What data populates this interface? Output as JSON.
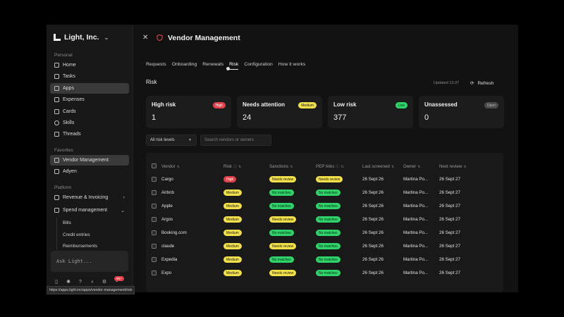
{
  "sidebar": {
    "org": "Light, Inc.",
    "sections": {
      "personal": "Personal",
      "favorites": "Favorites",
      "platform": "Platform"
    },
    "items": [
      {
        "label": "Home",
        "icon": "home-icon"
      },
      {
        "label": "Tasks",
        "icon": "tasks-icon"
      },
      {
        "label": "Apps",
        "icon": "apps-icon",
        "active": true
      },
      {
        "label": "Expenses",
        "icon": "expenses-icon"
      },
      {
        "label": "Cards",
        "icon": "cards-icon"
      },
      {
        "label": "Skills",
        "icon": "skills-icon"
      },
      {
        "label": "Threads",
        "icon": "threads-icon"
      }
    ],
    "favorites": [
      {
        "label": "Vendor Management",
        "icon": "vendor-icon",
        "active": true
      },
      {
        "label": "Adyen",
        "icon": "adyen-icon"
      }
    ],
    "platform": [
      {
        "label": "Revenue & Invoicing",
        "icon": "revenue-icon"
      },
      {
        "label": "Spend management",
        "icon": "spend-icon"
      }
    ],
    "spend_sub": [
      "Bills",
      "Credit entries",
      "Reimbursements"
    ],
    "ask_placeholder": "Ask Light...",
    "notif_count": "99+"
  },
  "header": {
    "title": "Vendor Management",
    "tabs": [
      "Requests",
      "Onboarding",
      "Renewals",
      "Risk",
      "Configuration",
      "How it works"
    ],
    "active_tab": "Risk"
  },
  "risk": {
    "title": "Risk",
    "updated": "Updated 13:37",
    "refresh": "Refresh",
    "cards": [
      {
        "label": "High risk",
        "badge": "High",
        "count": "1",
        "badge_bg": "#e0424b",
        "badge_fg": "#ffffff"
      },
      {
        "label": "Needs attention",
        "badge": "Medium",
        "count": "24",
        "badge_bg": "#f2e04a",
        "badge_fg": "#1a1a1a"
      },
      {
        "label": "Low risk",
        "badge": "Low",
        "count": "377",
        "badge_bg": "#2fd36a",
        "badge_fg": "#0d2a16"
      },
      {
        "label": "Unassessed",
        "badge": "Open",
        "count": "0",
        "badge_bg": "#4a4a4a",
        "badge_fg": "#b8b8b8"
      }
    ],
    "filter": "All risk levels",
    "search_placeholder": "Search vendors or owners"
  },
  "table": {
    "columns": [
      "Vendor",
      "Risk",
      "Sanctions",
      "PEP links",
      "Last screened",
      "Owner",
      "Next review"
    ],
    "rows": [
      {
        "vendor": "Cargo",
        "risk": "High",
        "sanctions": "Needs review",
        "pep": "Needs review",
        "last": "26 Sept 26",
        "owner": "Martina Po...",
        "next": "26 Sept 27"
      },
      {
        "vendor": "Airbnb",
        "risk": "Medium",
        "sanctions": "No matches",
        "pep": "No matches",
        "last": "26 Sept 26",
        "owner": "Martina Po...",
        "next": "26 Sept 27"
      },
      {
        "vendor": "Apple",
        "risk": "Medium",
        "sanctions": "No matches",
        "pep": "No matches",
        "last": "26 Sept 26",
        "owner": "Martina Po...",
        "next": "26 Sept 27"
      },
      {
        "vendor": "Argos",
        "risk": "Medium",
        "sanctions": "Needs review",
        "pep": "No matches",
        "last": "26 Sept 26",
        "owner": "Martina Po...",
        "next": "26 Sept 27"
      },
      {
        "vendor": "Booking.com",
        "risk": "Medium",
        "sanctions": "No matches",
        "pep": "No matches",
        "last": "26 Sept 26",
        "owner": "Martina Po...",
        "next": "26 Sept 27"
      },
      {
        "vendor": "claude",
        "risk": "Medium",
        "sanctions": "Needs review",
        "pep": "No matches",
        "last": "26 Sept 26",
        "owner": "Martina Po...",
        "next": "26 Sept 27"
      },
      {
        "vendor": "Expedia",
        "risk": "Medium",
        "sanctions": "No matches",
        "pep": "No matches",
        "last": "26 Sept 26",
        "owner": "Martina Po...",
        "next": "26 Sept 27"
      },
      {
        "vendor": "Expo",
        "risk": "Medium",
        "sanctions": "Needs review",
        "pep": "No matches",
        "last": "26 Sept 26",
        "owner": "Martina Po...",
        "next": "26 Sept 27"
      }
    ]
  },
  "pill_colors": {
    "High": {
      "bg": "#e0424b",
      "fg": "#ffffff"
    },
    "Medium": {
      "bg": "#f2e04a",
      "fg": "#1a1a1a"
    },
    "Needs review": {
      "bg": "#f2e04a",
      "fg": "#1a1a1a"
    },
    "No matches": {
      "bg": "#2fd36a",
      "fg": "#0d2a16"
    }
  },
  "status_url": "https://apps.light.inc/apps/vendor-management/risk"
}
